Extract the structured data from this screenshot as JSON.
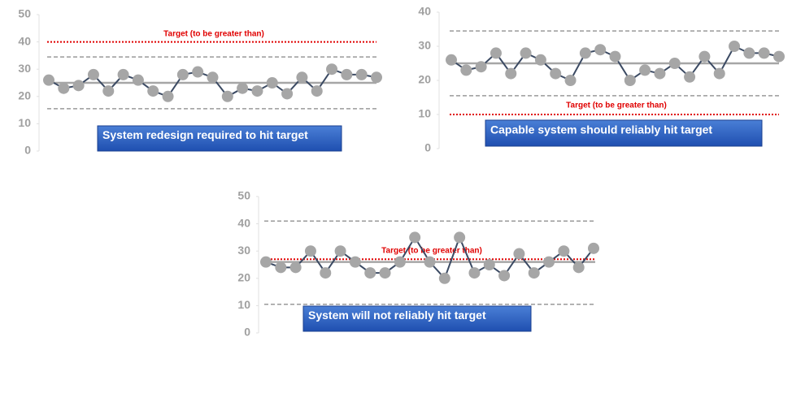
{
  "chart_data": [
    {
      "type": "control",
      "ylim": [
        0,
        50
      ],
      "yticks": [
        0,
        10,
        20,
        30,
        40,
        50
      ],
      "values": [
        26,
        23,
        24,
        28,
        22,
        28,
        26,
        22,
        20,
        28,
        29,
        27,
        20,
        23,
        22,
        25,
        21,
        27,
        22,
        30,
        28,
        28,
        27
      ],
      "center_line": 25,
      "ucl": 34.5,
      "lcl": 15.5,
      "target": 40,
      "target_label": "Target (to be greater than)",
      "annotation": "System redesign required to hit target",
      "line_color": "#3b4a63",
      "marker_color": "#a6a6a6",
      "target_color": "#e00000"
    },
    {
      "type": "control",
      "ylim": [
        0,
        40
      ],
      "yticks": [
        0,
        10,
        20,
        30,
        40
      ],
      "values": [
        26,
        23,
        24,
        28,
        22,
        28,
        26,
        22,
        20,
        28,
        29,
        27,
        20,
        23,
        22,
        25,
        21,
        27,
        22,
        30,
        28,
        28,
        27
      ],
      "center_line": 25,
      "ucl": 34.5,
      "lcl": 15.5,
      "target": 10,
      "target_label": "Target (to be greater than)",
      "annotation": "Capable system should reliably hit target",
      "line_color": "#3b4a63",
      "marker_color": "#a6a6a6",
      "target_color": "#e00000"
    },
    {
      "type": "control",
      "ylim": [
        0,
        50
      ],
      "yticks": [
        0,
        10,
        20,
        30,
        40,
        50
      ],
      "values": [
        26,
        24,
        24,
        30,
        22,
        30,
        26,
        22,
        22,
        26,
        35,
        26,
        20,
        35,
        22,
        25,
        21,
        29,
        22,
        26,
        30,
        24,
        31
      ],
      "center_line": 26,
      "ucl": 41,
      "lcl": 10.5,
      "target": 27,
      "target_label": "Target (to be greater than)",
      "annotation": "System will not reliably hit target",
      "line_color": "#3b4a63",
      "marker_color": "#a6a6a6",
      "target_color": "#e00000"
    }
  ]
}
